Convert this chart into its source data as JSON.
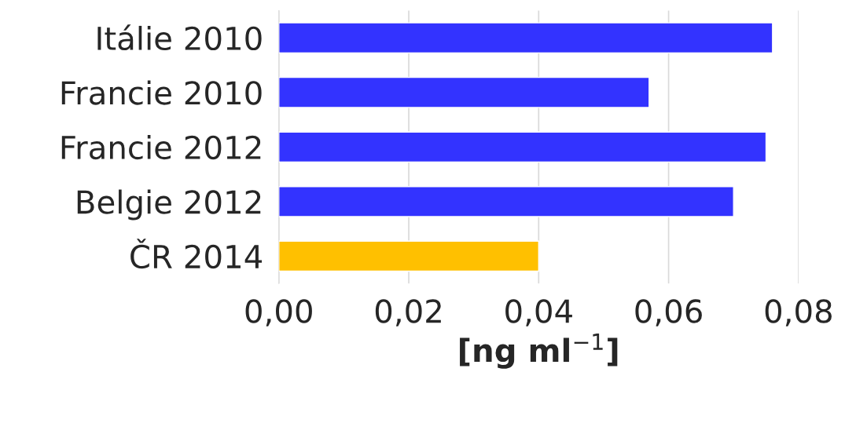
{
  "chart_data": {
    "type": "bar",
    "orientation": "horizontal",
    "categories": [
      "Itálie 2010",
      "Francie 2010",
      "Francie 2012",
      "Belgie 2012",
      "ČR 2014"
    ],
    "values": [
      0.076,
      0.057,
      0.075,
      0.07,
      0.04
    ],
    "colors": [
      "#3333ff",
      "#3333ff",
      "#3333ff",
      "#3333ff",
      "#ffc000"
    ],
    "xlabel": "[ng ml$^{−1}$]",
    "xlim": [
      0,
      0.08
    ],
    "xticks": [
      {
        "value": 0,
        "label": "0,00"
      },
      {
        "value": 0.02,
        "label": "0,02"
      },
      {
        "value": 0.04,
        "label": "0,04"
      },
      {
        "value": 0.06,
        "label": "0,06"
      },
      {
        "value": 0.08,
        "label": "0,08"
      }
    ],
    "grid": "x",
    "legend": false
  }
}
